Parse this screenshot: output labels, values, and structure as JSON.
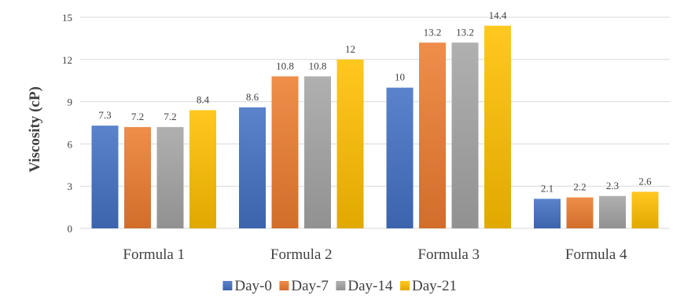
{
  "chart_data": {
    "type": "bar",
    "title": "",
    "xlabel": "",
    "ylabel": "Viscosity (cP)",
    "ylim": [
      0,
      15
    ],
    "yticks": [
      0,
      3,
      6,
      9,
      12,
      15
    ],
    "grid": true,
    "legend_position": "bottom",
    "categories": [
      "Formula 1",
      "Formula 2",
      "Formula 3",
      "Formula 4"
    ],
    "series": [
      {
        "name": "Day-0",
        "color": "#4472C4",
        "values": [
          7.3,
          8.6,
          10,
          2.1
        ],
        "labels": [
          "7.3",
          "8.6",
          "10",
          "2.1"
        ]
      },
      {
        "name": "Day-7",
        "color": "#ED7D31",
        "values": [
          7.2,
          10.8,
          13.2,
          2.2
        ],
        "labels": [
          "7.2",
          "10.8",
          "13.2",
          "2.2"
        ]
      },
      {
        "name": "Day-14",
        "color": "#A5A5A5",
        "values": [
          7.2,
          10.8,
          13.2,
          2.3
        ],
        "labels": [
          "7.2",
          "10.8",
          "13.2",
          "2.3"
        ]
      },
      {
        "name": "Day-21",
        "color": "#FFC000",
        "values": [
          8.4,
          12,
          14.4,
          2.6
        ],
        "labels": [
          "8.4",
          "12",
          "14.4",
          "2.6"
        ]
      }
    ]
  }
}
